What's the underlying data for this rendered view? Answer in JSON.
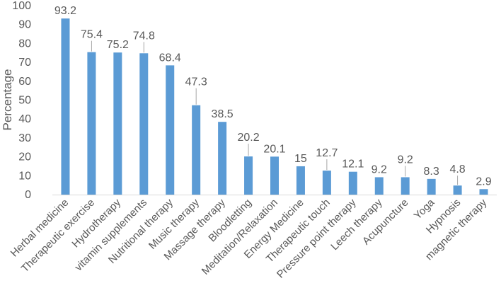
{
  "chart_data": {
    "type": "bar",
    "title": "",
    "xlabel": "",
    "ylabel": "Percentage",
    "ylim": [
      0,
      100
    ],
    "yticks": [
      0,
      10,
      20,
      30,
      40,
      50,
      60,
      70,
      80,
      90,
      100
    ],
    "grid": false,
    "legend": "none",
    "bar_color": "#5b9bd5",
    "categories": [
      "Herbal medicine",
      "Therapeutic exercise",
      "Hydrotherapy",
      "vitamin supplements",
      "Nutritional therapy",
      "Music therapy",
      "Massage therapy",
      "Bloodletting",
      "Meditation/Relaxation",
      "Energy Medicine",
      "Therapeutic touch",
      "Pressure point therapy",
      "Leech therapy",
      "Acupuncture",
      "Yoga",
      "Hypnosis",
      "magnetic therapy"
    ],
    "values": [
      93.2,
      75.4,
      75.2,
      74.8,
      68.4,
      47.3,
      38.5,
      20.2,
      20.1,
      15,
      12.7,
      12.1,
      9.2,
      9.2,
      8.3,
      4.8,
      2.9
    ],
    "data_labels": [
      "93.2",
      "75.4",
      "75.2",
      "74.8",
      "68.4",
      "47.3",
      "38.5",
      "20.2",
      "20.1",
      "15",
      "12.7",
      "12.1",
      "9.2",
      "9.2",
      "8.3",
      "4.8",
      "2.9"
    ]
  }
}
